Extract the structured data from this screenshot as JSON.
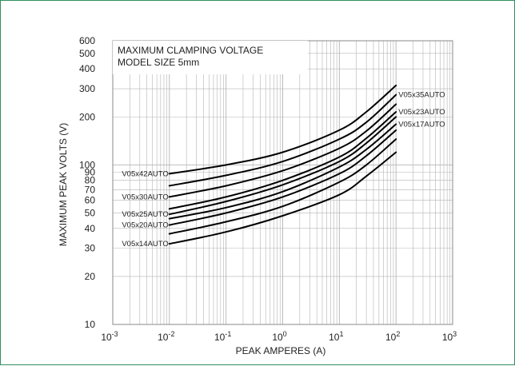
{
  "chart_data": {
    "type": "line",
    "title": [
      "MAXIMUM CLAMPING VOLTAGE",
      "MODEL SIZE 5mm"
    ],
    "xlabel": "PEAK AMPERES (A)",
    "ylabel": "MAXIMUM PEAK VOLTS (V)",
    "x_scale": "log",
    "y_scale": "log",
    "xlim": [
      0.001,
      1000
    ],
    "ylim": [
      10,
      600
    ],
    "grid": true,
    "x_ticks": [
      0.001,
      0.01,
      0.1,
      1,
      10,
      100,
      1000
    ],
    "x_tick_labels": [
      {
        "base": "10",
        "exp": "-3"
      },
      {
        "base": "10",
        "exp": "-2"
      },
      {
        "base": "10",
        "exp": "-1"
      },
      {
        "base": "10",
        "exp": "0"
      },
      {
        "base": "10",
        "exp": "1"
      },
      {
        "base": "10",
        "exp": "2"
      },
      {
        "base": "10",
        "exp": "3"
      }
    ],
    "y_ticks": [
      10,
      20,
      30,
      40,
      50,
      60,
      70,
      80,
      90,
      100,
      200,
      300,
      400,
      500,
      600
    ],
    "y_tick_labels": [
      "10",
      "20",
      "30",
      "40",
      "50",
      "60",
      "70",
      "80",
      "90",
      "100",
      "200",
      "300",
      "400",
      "500",
      "600"
    ],
    "series": [
      {
        "name": "V05x42AUTO",
        "label_side": "left",
        "points": [
          [
            0.01,
            88
          ],
          [
            0.1,
            100
          ],
          [
            1,
            120
          ],
          [
            10,
            165
          ],
          [
            30,
            215
          ],
          [
            100,
            315
          ]
        ]
      },
      {
        "name": "V05x35AUTO",
        "label_side": "right",
        "points": [
          [
            0.01,
            74
          ],
          [
            0.1,
            86
          ],
          [
            1,
            105
          ],
          [
            10,
            145
          ],
          [
            30,
            185
          ],
          [
            100,
            275
          ]
        ]
      },
      {
        "name": "V05x30AUTO",
        "label_side": "left",
        "points": [
          [
            0.01,
            63
          ],
          [
            0.1,
            74
          ],
          [
            1,
            92
          ],
          [
            10,
            127
          ],
          [
            30,
            163
          ],
          [
            100,
            240
          ]
        ]
      },
      {
        "name": "V05x23AUTO",
        "label_side": "right",
        "points": [
          [
            0.01,
            53
          ],
          [
            0.1,
            63
          ],
          [
            1,
            80
          ],
          [
            10,
            112
          ],
          [
            30,
            147
          ],
          [
            100,
            215
          ]
        ]
      },
      {
        "name": "V05x25AUTO",
        "label_side": "left",
        "points": [
          [
            0.01,
            49
          ],
          [
            0.1,
            59
          ],
          [
            1,
            75
          ],
          [
            10,
            105
          ],
          [
            30,
            137
          ],
          [
            100,
            200
          ]
        ]
      },
      {
        "name": "V05x17AUTO",
        "label_side": "right",
        "points": [
          [
            0.01,
            46
          ],
          [
            0.1,
            54
          ],
          [
            1,
            68
          ],
          [
            10,
            97
          ],
          [
            30,
            125
          ],
          [
            100,
            180
          ]
        ]
      },
      {
        "name": "V05x20AUTO",
        "label_side": "left",
        "points": [
          [
            0.01,
            42
          ],
          [
            0.1,
            50
          ],
          [
            1,
            63
          ],
          [
            10,
            88
          ],
          [
            30,
            114
          ],
          [
            100,
            165
          ]
        ]
      },
      {
        "name": "",
        "label_side": "none",
        "points": [
          [
            0.01,
            37
          ],
          [
            0.1,
            44
          ],
          [
            1,
            55
          ],
          [
            10,
            78
          ],
          [
            30,
            100
          ],
          [
            100,
            145
          ]
        ]
      },
      {
        "name": "V05x14AUTO",
        "label_side": "left",
        "points": [
          [
            0.01,
            32
          ],
          [
            0.1,
            38
          ],
          [
            1,
            48
          ],
          [
            10,
            65
          ],
          [
            30,
            85
          ],
          [
            100,
            120
          ]
        ]
      }
    ],
    "colors": {
      "line": "#000000",
      "grid": "#b4b4b4",
      "frame": "#2f8f5f",
      "text": "#222222"
    }
  }
}
